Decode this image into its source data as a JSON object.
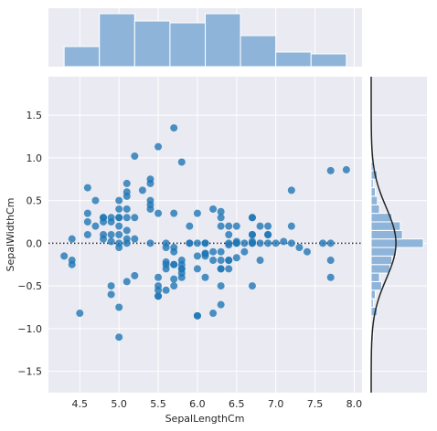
{
  "chart_data": {
    "type": "scatter",
    "subtype": "jointplot-residuals",
    "xlabel": "SepalLengthCm",
    "ylabel": "SepalWidthCm",
    "xlim": [
      4.1,
      8.1
    ],
    "ylim": [
      -1.75,
      1.95
    ],
    "x_ticks": [
      4.5,
      5.0,
      5.5,
      6.0,
      6.5,
      7.0,
      7.5,
      8.0
    ],
    "x_tick_labels": [
      "4.5",
      "5.0",
      "5.5",
      "6.0",
      "6.5",
      "7.0",
      "7.5",
      "8.0"
    ],
    "y_ticks": [
      -1.5,
      -1.0,
      -0.5,
      0.0,
      0.5,
      1.0,
      1.5
    ],
    "y_tick_labels": [
      "−1.5",
      "−1.0",
      "−0.5",
      "0.0",
      "0.5",
      "1.0",
      "1.5"
    ],
    "reference_line_y": 0,
    "grid": true,
    "colors": {
      "background": "#eaeaf2",
      "grid": "#ffffff",
      "point": "#1f77b4",
      "hist_fill": "#8fb4d9",
      "kde_line": "#262626",
      "reference_line": "#262626"
    },
    "points": [
      [
        5.1,
        0.0
      ],
      [
        4.9,
        0.3
      ],
      [
        4.7,
        0.5
      ],
      [
        4.6,
        0.25
      ],
      [
        5.0,
        0.4
      ],
      [
        5.4,
        0.45
      ],
      [
        4.6,
        0.35
      ],
      [
        5.0,
        0.3
      ],
      [
        4.4,
        0.05
      ],
      [
        4.9,
        0.1
      ],
      [
        5.4,
        0.7
      ],
      [
        4.8,
        0.3
      ],
      [
        4.8,
        0.05
      ],
      [
        4.3,
        -0.15
      ],
      [
        5.8,
        0.95
      ],
      [
        5.7,
        1.35
      ],
      [
        5.4,
        0.75
      ],
      [
        5.1,
        0.55
      ],
      [
        5.7,
        0.35
      ],
      [
        5.1,
        0.15
      ],
      [
        5.4,
        0.5
      ],
      [
        5.1,
        0.4
      ],
      [
        4.6,
        0.65
      ],
      [
        5.1,
        0.05
      ],
      [
        4.8,
        0.3
      ],
      [
        5.0,
        0.1
      ],
      [
        5.0,
        0.2
      ],
      [
        5.2,
        0.3
      ],
      [
        5.2,
        0.05
      ],
      [
        4.7,
        0.2
      ],
      [
        4.8,
        0.1
      ],
      [
        5.4,
        0.4
      ],
      [
        5.2,
        1.02
      ],
      [
        5.5,
        1.13
      ],
      [
        4.9,
        0.02
      ],
      [
        5.0,
        0.0
      ],
      [
        5.5,
        0.35
      ],
      [
        4.9,
        0.25
      ],
      [
        4.4,
        -0.2
      ],
      [
        5.1,
        0.3
      ],
      [
        5.0,
        0.5
      ],
      [
        4.5,
        -0.82
      ],
      [
        4.4,
        -0.25
      ],
      [
        5.0,
        0.3
      ],
      [
        5.1,
        0.7
      ],
      [
        4.8,
        0.25
      ],
      [
        5.1,
        0.6
      ],
      [
        4.6,
        0.1
      ],
      [
        5.3,
        0.62
      ],
      [
        5.0,
        -0.05
      ],
      [
        7.0,
        0.0
      ],
      [
        6.4,
        0.0
      ],
      [
        6.9,
        0.0
      ],
      [
        5.5,
        -0.55
      ],
      [
        6.5,
        -0.17
      ],
      [
        5.7,
        -0.25
      ],
      [
        6.3,
        0.2
      ],
      [
        4.9,
        -0.6
      ],
      [
        6.6,
        -0.1
      ],
      [
        5.2,
        -0.38
      ],
      [
        5.0,
        -1.1
      ],
      [
        5.9,
        0.0
      ],
      [
        6.0,
        -0.85
      ],
      [
        6.1,
        -0.12
      ],
      [
        5.6,
        -0.22
      ],
      [
        6.7,
        0.02
      ],
      [
        5.6,
        -0.05
      ],
      [
        5.8,
        -0.35
      ],
      [
        6.2,
        -0.82
      ],
      [
        5.6,
        -0.55
      ],
      [
        5.9,
        0.2
      ],
      [
        6.1,
        -0.12
      ],
      [
        6.3,
        -0.3
      ],
      [
        6.1,
        -0.15
      ],
      [
        6.4,
        -0.02
      ],
      [
        6.6,
        0.0
      ],
      [
        6.8,
        -0.2
      ],
      [
        6.7,
        0.0
      ],
      [
        6.0,
        -0.15
      ],
      [
        5.7,
        -0.42
      ],
      [
        5.5,
        -0.62
      ],
      [
        5.5,
        -0.62
      ],
      [
        5.8,
        -0.3
      ],
      [
        6.0,
        -0.3
      ],
      [
        5.4,
        0.0
      ],
      [
        6.0,
        0.35
      ],
      [
        6.7,
        0.1
      ],
      [
        6.3,
        -0.72
      ],
      [
        5.6,
        0.0
      ],
      [
        5.5,
        -0.5
      ],
      [
        5.5,
        -0.4
      ],
      [
        6.1,
        0.0
      ],
      [
        5.8,
        -0.4
      ],
      [
        5.0,
        -0.75
      ],
      [
        5.6,
        -0.3
      ],
      [
        5.7,
        -0.05
      ],
      [
        5.7,
        -0.1
      ],
      [
        6.2,
        -0.1
      ],
      [
        5.1,
        -0.45
      ],
      [
        5.7,
        -0.25
      ],
      [
        6.3,
        0.3
      ],
      [
        5.8,
        -0.3
      ],
      [
        7.1,
        0.02
      ],
      [
        6.3,
        -0.1
      ],
      [
        6.5,
        0.0
      ],
      [
        7.6,
        0.0
      ],
      [
        4.9,
        -0.5
      ],
      [
        7.3,
        -0.05
      ],
      [
        6.7,
        -0.5
      ],
      [
        7.2,
        0.62
      ],
      [
        6.5,
        0.2
      ],
      [
        6.4,
        -0.3
      ],
      [
        6.8,
        0.0
      ],
      [
        5.7,
        -0.5
      ],
      [
        5.8,
        -0.2
      ],
      [
        6.4,
        0.2
      ],
      [
        6.5,
        0.02
      ],
      [
        7.7,
        0.85
      ],
      [
        7.7,
        -0.4
      ],
      [
        6.0,
        -0.85
      ],
      [
        6.9,
        0.2
      ],
      [
        5.6,
        -0.25
      ],
      [
        7.7,
        -0.2
      ],
      [
        6.3,
        -0.3
      ],
      [
        6.7,
        0.3
      ],
      [
        7.2,
        0.2
      ],
      [
        6.2,
        -0.2
      ],
      [
        6.1,
        0.0
      ],
      [
        6.4,
        -0.2
      ],
      [
        7.2,
        0.0
      ],
      [
        7.4,
        -0.1
      ],
      [
        7.9,
        0.86
      ],
      [
        6.4,
        -0.2
      ],
      [
        6.3,
        -0.2
      ],
      [
        6.1,
        -0.4
      ],
      [
        7.7,
        0.0
      ],
      [
        6.3,
        0.37
      ],
      [
        6.4,
        0.1
      ],
      [
        6.0,
        0.0
      ],
      [
        6.9,
        0.1
      ],
      [
        6.7,
        0.1
      ],
      [
        6.9,
        0.1
      ],
      [
        5.8,
        -0.25
      ],
      [
        6.8,
        0.2
      ],
      [
        6.7,
        0.3
      ],
      [
        6.7,
        0.0
      ],
      [
        6.3,
        -0.5
      ],
      [
        6.5,
        0.0
      ],
      [
        6.2,
        0.4
      ],
      [
        5.9,
        0.0
      ]
    ],
    "x_hist": {
      "bin_edges": [
        4.3,
        4.75,
        5.2,
        5.65,
        6.1,
        6.55,
        7.0,
        7.45,
        7.9
      ],
      "counts": [
        11,
        29,
        25,
        24,
        29,
        17,
        8,
        7
      ]
    },
    "y_hist": {
      "bin_edges": [
        -1.15,
        -1.05,
        -0.95,
        -0.85,
        -0.75,
        -0.65,
        -0.55,
        -0.45,
        -0.35,
        -0.25,
        -0.15,
        -0.05,
        0.05,
        0.15,
        0.25,
        0.35,
        0.45,
        0.55,
        0.65,
        0.75,
        0.85,
        0.95
      ],
      "counts": [
        1,
        0,
        0,
        3,
        1,
        2,
        5,
        4,
        9,
        10,
        12,
        25,
        15,
        14,
        10,
        4,
        3,
        2,
        1,
        3,
        1
      ]
    },
    "y_kde": {
      "mean": 0.0,
      "std": 0.42
    }
  }
}
